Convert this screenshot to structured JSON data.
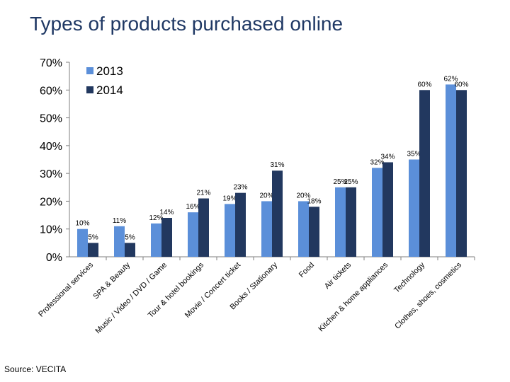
{
  "title": "Types of products purchased online",
  "source": "Source: VECITA",
  "chart_data": {
    "type": "bar",
    "title": "Types of products purchased online",
    "categories": [
      "Professional services",
      "SPA & Beauty",
      "Music / Video / DVD / Game",
      "Tour & hotel bookings",
      "Movie / Concert ticket",
      "Books / Stationary",
      "Food",
      "Air tickets",
      "Kitchen & home appliances",
      "Technology",
      "Clothes, shoes, cosmetics"
    ],
    "series": [
      {
        "name": "2013",
        "color": "#5b8fd9",
        "values": [
          10,
          11,
          12,
          16,
          19,
          20,
          20,
          25,
          32,
          35,
          62
        ]
      },
      {
        "name": "2014",
        "color": "#22385f",
        "values": [
          5,
          5,
          14,
          21,
          23,
          31,
          18,
          25,
          34,
          60,
          60
        ]
      }
    ],
    "y_ticks": [
      "0%",
      "10%",
      "20%",
      "30%",
      "40%",
      "50%",
      "60%",
      "70%"
    ],
    "ylim": [
      0,
      70
    ],
    "value_suffix": "%",
    "legend_position": "top-left",
    "grid": false
  }
}
